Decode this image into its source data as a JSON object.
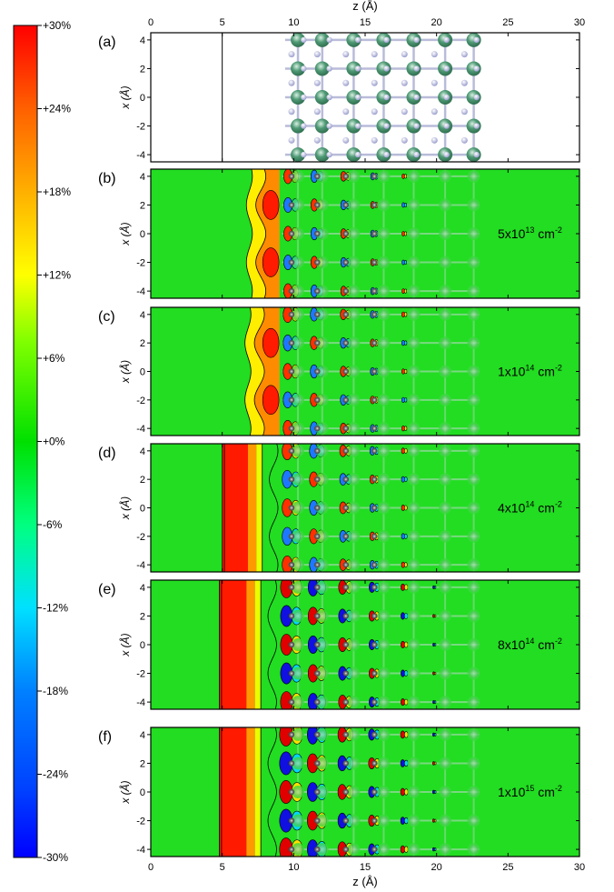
{
  "colorbar": {
    "ticks": [
      "+30%",
      "+24%",
      "+18%",
      "+12%",
      "+6%",
      "+0%",
      "-6%",
      "-12%",
      "-18%",
      "-24%",
      "-30%"
    ],
    "colors": [
      "#0000ff",
      "#0080ff",
      "#00ffff",
      "#00ff80",
      "#00e000",
      "#ffff00",
      "#ff8000",
      "#ff0000"
    ]
  },
  "axes": {
    "x_label": "z (Å)",
    "y_label": "x (Å)",
    "z_ticks": [
      "0",
      "5",
      "10",
      "15",
      "20",
      "25",
      "30"
    ],
    "x_ticks": [
      "4",
      "2",
      "0",
      "-2",
      "-4"
    ],
    "z_range": [
      0,
      30
    ],
    "x_range": [
      -4.5,
      4.5
    ]
  },
  "panels": [
    {
      "letter": "(a)",
      "density": ""
    },
    {
      "letter": "(b)",
      "density": "5x10",
      "exponent": "13",
      "unit": " cm",
      "unit_exp": "-2"
    },
    {
      "letter": "(c)",
      "density": "1x10",
      "exponent": "14",
      "unit": " cm",
      "unit_exp": "-2"
    },
    {
      "letter": "(d)",
      "density": "4x10",
      "exponent": "14",
      "unit": " cm",
      "unit_exp": "-2"
    },
    {
      "letter": "(e)",
      "density": "8x10",
      "exponent": "14",
      "unit": " cm",
      "unit_exp": "-2"
    },
    {
      "letter": "(f)",
      "density": "1x10",
      "exponent": "15",
      "unit": " cm",
      "unit_exp": "-2"
    }
  ],
  "structure": {
    "big_atom_color": "#4f9a75",
    "small_atom_color": "#a9acd6",
    "big_atom_z": [
      10.3,
      12.0,
      14.2,
      16.3,
      18.4,
      20.6,
      22.6
    ],
    "small_atom_z": [
      9.4,
      11.2,
      13.2,
      15.2,
      17.3,
      19.4,
      21.5
    ],
    "atom_x": [
      4,
      2,
      0,
      -2,
      -4
    ]
  }
}
